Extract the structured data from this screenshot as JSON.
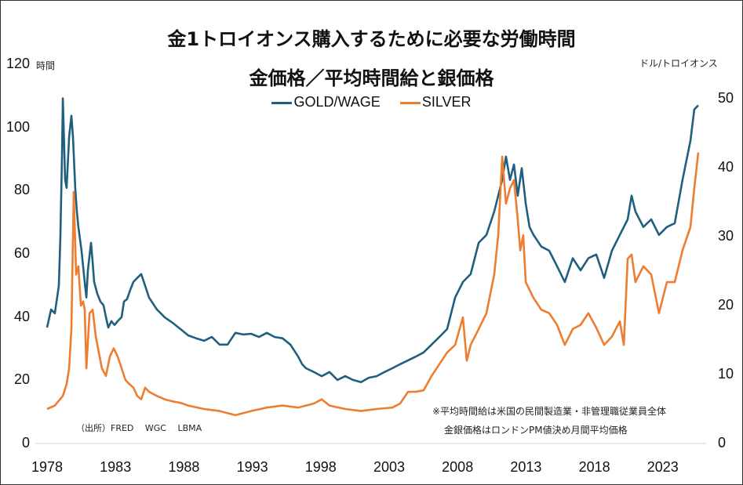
{
  "chart_data": {
    "type": "line",
    "title": "金1トロイオンス購入するために必要な労働時間",
    "subtitle": "金価格／平均時間給と銀価格",
    "y_left_unit": "時間",
    "y_right_unit": "ドル/トロイオンス",
    "x_ticks": [
      "1978",
      "1983",
      "1988",
      "1993",
      "1998",
      "2003",
      "2008",
      "2013",
      "2018",
      "2023"
    ],
    "y_left_ticks": [
      "0",
      "20",
      "40",
      "60",
      "80",
      "100",
      "120"
    ],
    "y_right_ticks": [
      "0",
      "10",
      "20",
      "30",
      "40",
      "50"
    ],
    "y_left_range": [
      0,
      120
    ],
    "y_right_range": [
      0,
      55
    ],
    "x_range": [
      1978,
      2026
    ],
    "grid": false,
    "legend_position": "top",
    "series": [
      {
        "name": "GOLD/WAGE",
        "axis": "left",
        "color": "#1f5f7f",
        "points": [
          [
            1978.0,
            36.7
          ],
          [
            1978.29,
            42.4
          ],
          [
            1978.57,
            41.2
          ],
          [
            1978.86,
            49.9
          ],
          [
            1978.97,
            64.8
          ],
          [
            1979.09,
            90.8
          ],
          [
            1979.15,
            109.2
          ],
          [
            1979.32,
            83.4
          ],
          [
            1979.43,
            80.9
          ],
          [
            1979.61,
            97.0
          ],
          [
            1979.78,
            103.7
          ],
          [
            1979.89,
            97.0
          ],
          [
            1980.06,
            80.9
          ],
          [
            1980.18,
            73.4
          ],
          [
            1980.29,
            68.5
          ],
          [
            1980.52,
            61.0
          ],
          [
            1980.69,
            53.6
          ],
          [
            1980.87,
            46.2
          ],
          [
            1980.98,
            54.8
          ],
          [
            1981.21,
            63.5
          ],
          [
            1981.33,
            57.3
          ],
          [
            1981.44,
            51.1
          ],
          [
            1981.67,
            47.4
          ],
          [
            1981.9,
            44.9
          ],
          [
            1982.13,
            43.7
          ],
          [
            1982.3,
            40.0
          ],
          [
            1982.47,
            36.7
          ],
          [
            1982.7,
            38.7
          ],
          [
            1982.93,
            37.5
          ],
          [
            1983.16,
            38.7
          ],
          [
            1983.45,
            40.0
          ],
          [
            1983.62,
            44.9
          ],
          [
            1983.85,
            45.7
          ],
          [
            1984.08,
            48.6
          ],
          [
            1984.31,
            51.1
          ],
          [
            1984.59,
            52.4
          ],
          [
            1984.88,
            53.6
          ],
          [
            1985.17,
            49.9
          ],
          [
            1985.45,
            46.2
          ],
          [
            1986.03,
            42.4
          ],
          [
            1986.6,
            39.9
          ],
          [
            1987.17,
            38.2
          ],
          [
            1987.75,
            36.2
          ],
          [
            1988.32,
            34.2
          ],
          [
            1988.89,
            33.3
          ],
          [
            1989.47,
            32.5
          ],
          [
            1990.04,
            33.7
          ],
          [
            1990.61,
            31.3
          ],
          [
            1991.19,
            31.3
          ],
          [
            1991.76,
            35.0
          ],
          [
            1992.33,
            34.5
          ],
          [
            1992.91,
            34.7
          ],
          [
            1993.48,
            33.7
          ],
          [
            1994.06,
            35.0
          ],
          [
            1994.63,
            33.7
          ],
          [
            1995.2,
            33.3
          ],
          [
            1995.78,
            31.3
          ],
          [
            1996.35,
            27.5
          ],
          [
            1996.64,
            25.1
          ],
          [
            1996.92,
            23.8
          ],
          [
            1997.5,
            22.6
          ],
          [
            1998.07,
            21.3
          ],
          [
            1998.64,
            22.6
          ],
          [
            1999.22,
            20.1
          ],
          [
            1999.79,
            21.3
          ],
          [
            2000.36,
            20.1
          ],
          [
            2000.94,
            19.4
          ],
          [
            2001.51,
            20.8
          ],
          [
            2002.08,
            21.3
          ],
          [
            2002.66,
            22.6
          ],
          [
            2003.23,
            23.8
          ],
          [
            2003.8,
            25.1
          ],
          [
            2004.38,
            26.3
          ],
          [
            2004.95,
            27.5
          ],
          [
            2005.52,
            28.8
          ],
          [
            2006.1,
            31.3
          ],
          [
            2006.67,
            33.7
          ],
          [
            2007.24,
            36.2
          ],
          [
            2007.82,
            46.2
          ],
          [
            2008.39,
            51.1
          ],
          [
            2008.96,
            53.6
          ],
          [
            2009.54,
            63.5
          ],
          [
            2010.11,
            66.0
          ],
          [
            2010.68,
            73.4
          ],
          [
            2011.26,
            83.4
          ],
          [
            2011.54,
            90.8
          ],
          [
            2011.83,
            83.4
          ],
          [
            2012.12,
            88.3
          ],
          [
            2012.4,
            78.4
          ],
          [
            2012.69,
            87.1
          ],
          [
            2012.98,
            75.9
          ],
          [
            2013.26,
            68.5
          ],
          [
            2013.55,
            66.0
          ],
          [
            2014.12,
            62.3
          ],
          [
            2014.7,
            61.0
          ],
          [
            2015.27,
            56.1
          ],
          [
            2015.84,
            51.1
          ],
          [
            2016.42,
            58.6
          ],
          [
            2016.99,
            54.8
          ],
          [
            2017.56,
            58.6
          ],
          [
            2018.14,
            59.8
          ],
          [
            2018.71,
            52.4
          ],
          [
            2019.28,
            61.0
          ],
          [
            2019.86,
            66.0
          ],
          [
            2020.43,
            70.9
          ],
          [
            2020.72,
            78.4
          ],
          [
            2021.0,
            73.4
          ],
          [
            2021.58,
            68.5
          ],
          [
            2022.15,
            70.9
          ],
          [
            2022.72,
            66.0
          ],
          [
            2023.3,
            68.5
          ],
          [
            2023.87,
            69.7
          ],
          [
            2024.44,
            83.4
          ],
          [
            2025.02,
            95.8
          ],
          [
            2025.3,
            105.7
          ],
          [
            2025.59,
            107.0
          ]
        ]
      },
      {
        "name": "SILVER",
        "axis": "right",
        "color": "#ed7d31",
        "points": [
          [
            1978.0,
            5.0
          ],
          [
            1978.57,
            5.5
          ],
          [
            1979.15,
            6.9
          ],
          [
            1979.43,
            8.6
          ],
          [
            1979.61,
            10.9
          ],
          [
            1979.78,
            16.6
          ],
          [
            1979.95,
            36.5
          ],
          [
            1980.12,
            24.5
          ],
          [
            1980.29,
            25.7
          ],
          [
            1980.47,
            20.0
          ],
          [
            1980.64,
            20.6
          ],
          [
            1980.75,
            19.4
          ],
          [
            1980.87,
            10.9
          ],
          [
            1981.1,
            18.9
          ],
          [
            1981.33,
            19.4
          ],
          [
            1981.56,
            15.5
          ],
          [
            1981.78,
            13.2
          ],
          [
            1982.01,
            10.9
          ],
          [
            1982.3,
            9.8
          ],
          [
            1982.59,
            12.6
          ],
          [
            1982.87,
            13.8
          ],
          [
            1983.16,
            12.6
          ],
          [
            1983.45,
            10.9
          ],
          [
            1983.73,
            9.2
          ],
          [
            1984.02,
            8.6
          ],
          [
            1984.31,
            8.1
          ],
          [
            1984.59,
            6.9
          ],
          [
            1984.88,
            6.4
          ],
          [
            1985.17,
            8.1
          ],
          [
            1985.45,
            7.5
          ],
          [
            1986.03,
            6.9
          ],
          [
            1986.6,
            6.4
          ],
          [
            1987.17,
            6.1
          ],
          [
            1987.75,
            5.9
          ],
          [
            1988.32,
            5.5
          ],
          [
            1989.47,
            5.0
          ],
          [
            1990.61,
            4.7
          ],
          [
            1991.76,
            4.1
          ],
          [
            1992.91,
            4.7
          ],
          [
            1994.06,
            5.2
          ],
          [
            1995.2,
            5.5
          ],
          [
            1996.35,
            5.2
          ],
          [
            1997.5,
            5.8
          ],
          [
            1998.07,
            6.4
          ],
          [
            1998.64,
            5.5
          ],
          [
            1999.79,
            5.0
          ],
          [
            2000.94,
            4.7
          ],
          [
            2002.08,
            5.0
          ],
          [
            2003.23,
            5.2
          ],
          [
            2003.8,
            5.8
          ],
          [
            2004.38,
            7.5
          ],
          [
            2004.95,
            7.5
          ],
          [
            2005.52,
            7.7
          ],
          [
            2006.1,
            9.8
          ],
          [
            2006.67,
            11.5
          ],
          [
            2007.24,
            13.2
          ],
          [
            2007.82,
            14.3
          ],
          [
            2008.39,
            18.3
          ],
          [
            2008.67,
            12.0
          ],
          [
            2008.96,
            14.3
          ],
          [
            2009.54,
            16.6
          ],
          [
            2010.11,
            18.9
          ],
          [
            2010.68,
            24.5
          ],
          [
            2010.97,
            30.2
          ],
          [
            2011.26,
            41.6
          ],
          [
            2011.54,
            34.8
          ],
          [
            2011.83,
            37.0
          ],
          [
            2012.12,
            38.2
          ],
          [
            2012.4,
            32.5
          ],
          [
            2012.58,
            28.0
          ],
          [
            2012.8,
            30.2
          ],
          [
            2012.98,
            23.4
          ],
          [
            2013.55,
            21.1
          ],
          [
            2014.12,
            19.4
          ],
          [
            2014.7,
            18.9
          ],
          [
            2015.27,
            17.2
          ],
          [
            2015.84,
            14.3
          ],
          [
            2016.42,
            16.6
          ],
          [
            2016.99,
            17.2
          ],
          [
            2017.56,
            18.9
          ],
          [
            2018.14,
            16.8
          ],
          [
            2018.71,
            14.3
          ],
          [
            2019.28,
            15.5
          ],
          [
            2019.86,
            17.7
          ],
          [
            2020.15,
            14.3
          ],
          [
            2020.43,
            26.8
          ],
          [
            2020.72,
            27.4
          ],
          [
            2021.0,
            23.4
          ],
          [
            2021.58,
            25.7
          ],
          [
            2022.15,
            24.5
          ],
          [
            2022.72,
            18.9
          ],
          [
            2023.3,
            23.4
          ],
          [
            2023.87,
            23.4
          ],
          [
            2024.44,
            28.0
          ],
          [
            2025.02,
            31.4
          ],
          [
            2025.3,
            37.0
          ],
          [
            2025.59,
            42.2
          ]
        ]
      }
    ]
  },
  "notes": {
    "source": "（出所）FRED　 WGC　 LBMA",
    "note1": "※平均時間給は米国の民間製造業・非管理職従業員全体",
    "note2": "金銀価格はロンドンPM値決め月間平均価格"
  }
}
